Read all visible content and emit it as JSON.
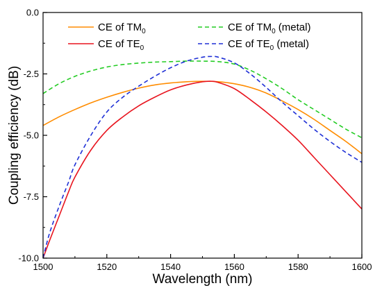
{
  "chart_data": {
    "type": "line",
    "title": "",
    "xlabel": "Wavelength (nm)",
    "ylabel": "Coupling efficiency (dB)",
    "xlim": [
      1500,
      1600
    ],
    "ylim": [
      -10.0,
      0.0
    ],
    "x_ticks": [
      1500,
      1520,
      1540,
      1560,
      1580,
      1600
    ],
    "x_tick_labels": [
      "1500",
      "1520",
      "1540",
      "1560",
      "1580",
      "1600"
    ],
    "y_ticks": [
      0.0,
      -2.5,
      -5.0,
      -7.5,
      -10.0
    ],
    "y_tick_labels": [
      "0.0",
      "-2.5",
      "-5.0",
      "-7.5",
      "-10.0"
    ],
    "grid": false,
    "legend_position": "top",
    "series": [
      {
        "name_main": "CE of TM",
        "name_sub": "0",
        "name_suffix": "",
        "color": "#ff8c00",
        "dash": "solid",
        "x": [
          1500,
          1505,
          1510,
          1515,
          1520,
          1525,
          1530,
          1535,
          1540,
          1545,
          1550,
          1555,
          1560,
          1565,
          1570,
          1575,
          1580,
          1585,
          1590,
          1595,
          1600
        ],
        "y": [
          -4.6,
          -4.25,
          -3.95,
          -3.68,
          -3.45,
          -3.25,
          -3.08,
          -2.95,
          -2.87,
          -2.82,
          -2.8,
          -2.82,
          -2.9,
          -3.05,
          -3.28,
          -3.6,
          -3.95,
          -4.35,
          -4.8,
          -5.25,
          -5.75
        ]
      },
      {
        "name_main": "CE of TE",
        "name_sub": "0",
        "name_suffix": "",
        "color": "#e8141e",
        "dash": "solid",
        "x": [
          1500,
          1502,
          1505,
          1508,
          1510,
          1515,
          1520,
          1525,
          1530,
          1535,
          1540,
          1545,
          1550,
          1553,
          1555,
          1560,
          1565,
          1570,
          1575,
          1580,
          1585,
          1590,
          1595,
          1600
        ],
        "y": [
          -10.0,
          -9.3,
          -8.3,
          -7.3,
          -6.7,
          -5.6,
          -4.8,
          -4.25,
          -3.8,
          -3.45,
          -3.15,
          -2.95,
          -2.82,
          -2.8,
          -2.85,
          -3.1,
          -3.55,
          -4.05,
          -4.6,
          -5.2,
          -5.9,
          -6.6,
          -7.3,
          -8.0
        ]
      },
      {
        "name_main": "CE of TM",
        "name_sub": "0",
        "name_suffix": " (metal)",
        "color": "#22cc22",
        "dash": "dashed",
        "x": [
          1500,
          1505,
          1510,
          1515,
          1520,
          1525,
          1530,
          1535,
          1540,
          1545,
          1550,
          1555,
          1560,
          1565,
          1570,
          1575,
          1580,
          1585,
          1590,
          1595,
          1600
        ],
        "y": [
          -3.3,
          -2.9,
          -2.6,
          -2.38,
          -2.22,
          -2.12,
          -2.06,
          -2.02,
          -2.0,
          -1.98,
          -1.98,
          -2.0,
          -2.1,
          -2.35,
          -2.7,
          -3.1,
          -3.55,
          -3.95,
          -4.35,
          -4.75,
          -5.1
        ]
      },
      {
        "name_main": "CE of TE",
        "name_sub": "0",
        "name_suffix": " (metal)",
        "color": "#1e2fd6",
        "dash": "dashed",
        "x": [
          1500,
          1502,
          1505,
          1508,
          1510,
          1515,
          1520,
          1525,
          1530,
          1535,
          1540,
          1545,
          1550,
          1553,
          1555,
          1560,
          1565,
          1570,
          1575,
          1580,
          1585,
          1590,
          1595,
          1600
        ],
        "y": [
          -10.0,
          -9.0,
          -7.9,
          -6.9,
          -6.2,
          -5.0,
          -4.05,
          -3.45,
          -3.0,
          -2.6,
          -2.25,
          -1.98,
          -1.82,
          -1.79,
          -1.82,
          -2.05,
          -2.5,
          -3.05,
          -3.65,
          -4.2,
          -4.75,
          -5.25,
          -5.7,
          -6.1
        ]
      }
    ]
  }
}
